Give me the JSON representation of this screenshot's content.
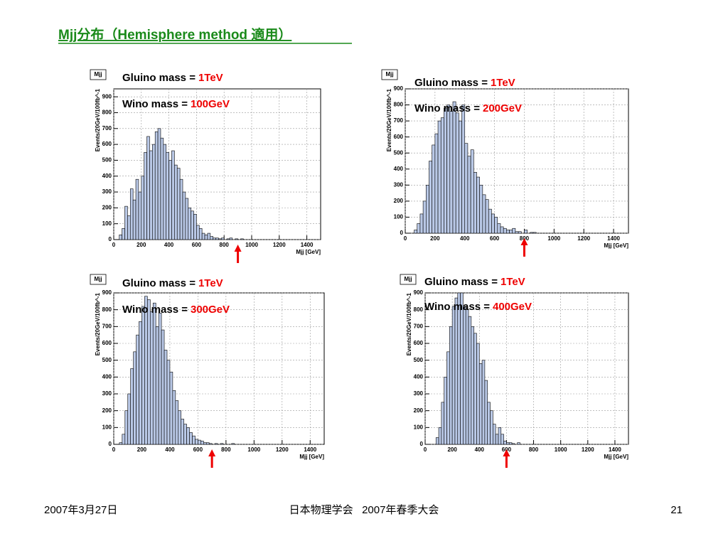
{
  "slide_title": "Mjj分布（Hemisphere method 適用）",
  "footer": {
    "date": "2007年3月27日",
    "event": "日本物理学会   2007年春季大会",
    "page": "21"
  },
  "chart_data": [
    {
      "type": "histogram",
      "title": "Mjj",
      "ylabel": "Events/20GeV/100fb^-1",
      "xlabel": "Mjj [GeV]",
      "annotations": [
        {
          "text": "Gluino mass =",
          "highlight": "1TeV"
        },
        {
          "text": "Wino mass =",
          "highlight": "100GeV"
        }
      ],
      "arrow_x": 900,
      "color": "#b9c8e6",
      "bins": [
        0,
        20,
        40,
        60,
        80,
        100,
        120,
        140,
        160,
        180,
        200,
        220,
        240,
        260,
        280,
        300,
        320,
        340,
        360,
        380,
        400,
        420,
        440,
        460,
        480,
        500,
        520,
        540,
        560,
        580,
        600,
        620,
        640,
        660,
        680,
        700,
        720,
        740,
        760,
        780,
        800,
        820,
        840,
        860,
        880,
        900,
        920,
        940,
        960,
        980,
        1000
      ],
      "values": [
        0,
        0,
        30,
        70,
        210,
        150,
        320,
        250,
        380,
        300,
        400,
        550,
        650,
        560,
        600,
        680,
        700,
        640,
        600,
        550,
        500,
        560,
        470,
        450,
        380,
        300,
        260,
        200,
        180,
        160,
        90,
        70,
        40,
        30,
        40,
        20,
        10,
        10,
        5,
        10,
        0,
        5,
        10,
        0,
        5,
        0,
        5,
        0,
        0,
        0
      ],
      "xlim": [
        0,
        1500
      ],
      "xticks": [
        0,
        200,
        400,
        600,
        800,
        1000,
        1200,
        1400
      ],
      "ylim": [
        0,
        950
      ],
      "yticks": [
        0,
        100,
        200,
        300,
        400,
        500,
        600,
        700,
        800,
        900
      ],
      "grid": true
    },
    {
      "type": "histogram",
      "title": "Mjj",
      "ylabel": "Events/20GeV/100fb^-1",
      "xlabel": "Mjj [GeV]",
      "annotations": [
        {
          "text": "Gluino mass =",
          "highlight": "1TeV"
        },
        {
          "text": "Wino mass =",
          "highlight": "200GeV"
        }
      ],
      "arrow_x": 800,
      "color": "#b9c8e6",
      "bins": [
        0,
        20,
        40,
        60,
        80,
        100,
        120,
        140,
        160,
        180,
        200,
        220,
        240,
        260,
        280,
        300,
        320,
        340,
        360,
        380,
        400,
        420,
        440,
        460,
        480,
        500,
        520,
        540,
        560,
        580,
        600,
        620,
        640,
        660,
        680,
        700,
        720,
        740,
        760,
        780,
        800,
        820,
        840,
        860,
        880,
        900,
        920,
        940,
        960,
        980,
        1000
      ],
      "values": [
        0,
        0,
        0,
        20,
        60,
        120,
        200,
        300,
        450,
        550,
        620,
        700,
        720,
        780,
        800,
        760,
        820,
        750,
        700,
        800,
        560,
        480,
        520,
        380,
        350,
        300,
        240,
        210,
        150,
        120,
        100,
        60,
        40,
        30,
        20,
        20,
        30,
        10,
        10,
        0,
        20,
        0,
        5,
        5,
        0,
        0,
        0,
        0,
        0,
        0
      ],
      "xlim": [
        0,
        1500
      ],
      "xticks": [
        0,
        200,
        400,
        600,
        800,
        1000,
        1200,
        1400
      ],
      "ylim": [
        0,
        900
      ],
      "yticks": [
        0,
        100,
        200,
        300,
        400,
        500,
        600,
        700,
        800,
        900
      ],
      "grid": true
    },
    {
      "type": "histogram",
      "title": "Mjj",
      "ylabel": "Events/20GeV/100fb^-1",
      "xlabel": "Mjj [GeV]",
      "annotations": [
        {
          "text": "Gluino mass =",
          "highlight": "1TeV"
        },
        {
          "text": "Wino mass =",
          "highlight": "300GeV"
        }
      ],
      "arrow_x": 700,
      "color": "#b9c8e6",
      "bins": [
        0,
        20,
        40,
        60,
        80,
        100,
        120,
        140,
        160,
        180,
        200,
        220,
        240,
        260,
        280,
        300,
        320,
        340,
        360,
        380,
        400,
        420,
        440,
        460,
        480,
        500,
        520,
        540,
        560,
        580,
        600,
        620,
        640,
        660,
        680,
        700,
        720,
        740,
        760,
        780,
        800,
        820,
        840,
        860,
        880,
        900,
        920,
        940,
        960,
        980,
        1000
      ],
      "values": [
        0,
        0,
        10,
        60,
        200,
        300,
        450,
        550,
        650,
        730,
        820,
        880,
        860,
        790,
        840,
        700,
        780,
        680,
        560,
        500,
        430,
        320,
        260,
        200,
        150,
        120,
        100,
        70,
        50,
        30,
        25,
        20,
        10,
        10,
        5,
        0,
        5,
        0,
        5,
        0,
        0,
        0,
        5,
        0,
        0,
        0,
        0,
        0,
        0,
        0
      ],
      "xlim": [
        0,
        1500
      ],
      "xticks": [
        0,
        200,
        400,
        600,
        800,
        1000,
        1200,
        1400
      ],
      "ylim": [
        0,
        900
      ],
      "yticks": [
        0,
        100,
        200,
        300,
        400,
        500,
        600,
        700,
        800,
        900
      ],
      "grid": true
    },
    {
      "type": "histogram",
      "title": "Mjj",
      "ylabel": "Events/20GeV/100fb^-1",
      "xlabel": "Mjj [GeV]",
      "annotations": [
        {
          "text": "Gluino mass =",
          "highlight": "1TeV"
        },
        {
          "text": "Wino mass =",
          "highlight": "400GeV"
        }
      ],
      "arrow_x": 600,
      "color": "#b9c8e6",
      "bins": [
        0,
        20,
        40,
        60,
        80,
        100,
        120,
        140,
        160,
        180,
        200,
        220,
        240,
        260,
        280,
        300,
        320,
        340,
        360,
        380,
        400,
        420,
        440,
        460,
        480,
        500,
        520,
        540,
        560,
        580,
        600,
        620,
        640,
        660,
        680,
        700,
        720,
        740,
        760,
        780,
        800,
        820,
        840,
        860,
        880,
        900,
        920,
        940,
        960,
        980,
        1000
      ],
      "values": [
        0,
        0,
        0,
        0,
        40,
        100,
        250,
        400,
        550,
        700,
        820,
        870,
        900,
        930,
        820,
        800,
        760,
        700,
        660,
        600,
        480,
        500,
        380,
        250,
        200,
        120,
        60,
        100,
        60,
        20,
        10,
        10,
        5,
        0,
        10,
        0,
        0,
        0,
        0,
        0,
        0,
        0,
        0,
        0,
        0,
        0,
        0,
        0,
        0,
        0
      ],
      "xlim": [
        0,
        1500
      ],
      "xticks": [
        0,
        200,
        400,
        600,
        800,
        1000,
        1200,
        1400
      ],
      "ylim": [
        0,
        900
      ],
      "yticks": [
        0,
        100,
        200,
        300,
        400,
        500,
        600,
        700,
        800,
        900
      ],
      "grid": true
    }
  ]
}
